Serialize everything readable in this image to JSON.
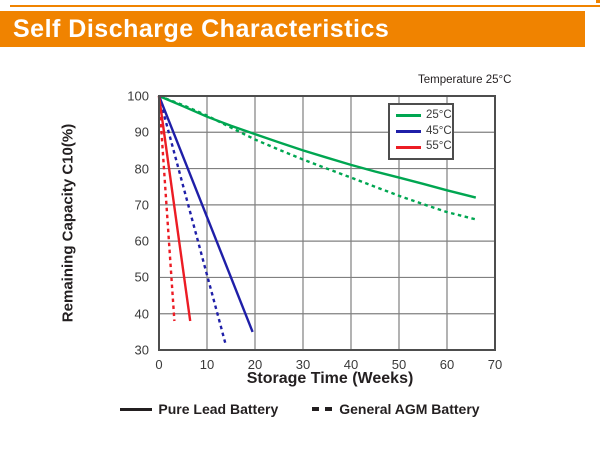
{
  "header": {
    "title": "Self Discharge Characteristics",
    "bar_color": "#F08300"
  },
  "chart": {
    "note": "Temperature 25°C",
    "ylabel": "Remaining Capacity C10(%)",
    "xlabel": "Storage Time (Weeks)"
  },
  "legend": {
    "items": [
      {
        "label": "25°C",
        "color": "#00A651"
      },
      {
        "label": "45°C",
        "color": "#1F1FA8"
      },
      {
        "label": "55°C",
        "color": "#EC1C24"
      }
    ]
  },
  "bottom_legend": {
    "solid_label": "Pure Lead Battery",
    "dashed_label": "General AGM Battery"
  },
  "chart_data": {
    "type": "line",
    "title": "Self Discharge Characteristics",
    "xlabel": "Storage Time (Weeks)",
    "ylabel": "Remaining Capacity C10(%)",
    "xlim": [
      0,
      70
    ],
    "ylim": [
      30,
      100
    ],
    "x_ticks": [
      0,
      10,
      20,
      30,
      40,
      50,
      60,
      70
    ],
    "y_ticks": [
      30,
      40,
      50,
      60,
      70,
      80,
      90,
      100
    ],
    "grid": true,
    "grid_color": "#808080",
    "border_color": "#4d4d4d",
    "annotation": "Temperature 25°C",
    "legend_position": "upper-right-inside",
    "series": [
      {
        "name": "25°C Pure Lead Battery",
        "temperature": "25°C",
        "battery": "Pure Lead Battery",
        "color": "#00A651",
        "style": "solid",
        "points": [
          [
            0,
            100
          ],
          [
            5,
            97.2
          ],
          [
            10,
            94.3
          ],
          [
            15,
            91.8
          ],
          [
            20,
            89.5
          ],
          [
            25,
            87.2
          ],
          [
            30,
            85
          ],
          [
            35,
            83
          ],
          [
            40,
            81
          ],
          [
            45,
            79.2
          ],
          [
            50,
            77.5
          ],
          [
            55,
            75.8
          ],
          [
            60,
            74
          ],
          [
            66,
            72
          ]
        ]
      },
      {
        "name": "25°C General AGM Battery",
        "temperature": "25°C",
        "battery": "General AGM Battery",
        "color": "#00A651",
        "style": "dashed",
        "points": [
          [
            0,
            100
          ],
          [
            5,
            97.5
          ],
          [
            10,
            94.6
          ],
          [
            15,
            91.3
          ],
          [
            20,
            88
          ],
          [
            25,
            85.2
          ],
          [
            30,
            82.5
          ],
          [
            35,
            80
          ],
          [
            40,
            77.5
          ],
          [
            45,
            75
          ],
          [
            50,
            72.5
          ],
          [
            55,
            70.2
          ],
          [
            60,
            68
          ],
          [
            66,
            66
          ]
        ]
      },
      {
        "name": "45°C Pure Lead Battery",
        "temperature": "45°C",
        "battery": "Pure Lead Battery",
        "color": "#1F1FA8",
        "style": "solid",
        "points": [
          [
            0,
            100
          ],
          [
            19.5,
            35
          ]
        ]
      },
      {
        "name": "45°C General AGM Battery",
        "temperature": "45°C",
        "battery": "General AGM Battery",
        "color": "#1F1FA8",
        "style": "dashed",
        "points": [
          [
            0,
            100
          ],
          [
            13.8,
            32
          ]
        ]
      },
      {
        "name": "55°C Pure Lead Battery",
        "temperature": "55°C",
        "battery": "Pure Lead Battery",
        "color": "#EC1C24",
        "style": "solid",
        "points": [
          [
            0,
            100
          ],
          [
            6.5,
            38
          ]
        ]
      },
      {
        "name": "55°C General AGM Battery",
        "temperature": "55°C",
        "battery": "General AGM Battery",
        "color": "#EC1C24",
        "style": "dashed",
        "points": [
          [
            0,
            100
          ],
          [
            3.2,
            38
          ]
        ]
      }
    ]
  }
}
